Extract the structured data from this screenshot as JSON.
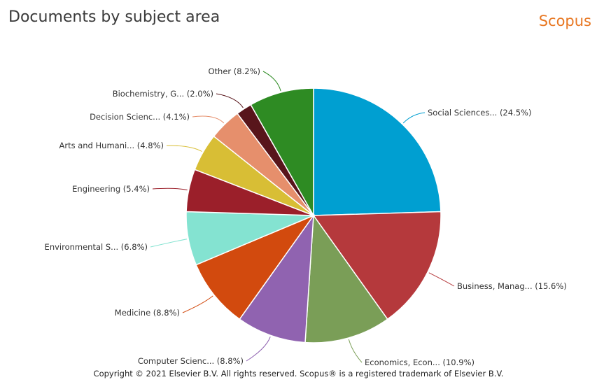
{
  "header": {
    "title": "Documents by subject area",
    "brand": "Scopus"
  },
  "footer": {
    "copyright": "Copyright © 2021 Elsevier B.V. All rights reserved. Scopus® is a registered trademark of Elsevier B.V."
  },
  "chart_data": {
    "type": "pie",
    "title": "Documents by subject area",
    "unit": "%",
    "slices": [
      {
        "label": "Social Sciences...",
        "value": 24.5,
        "color": "#009fd1"
      },
      {
        "label": "Business, Manag...",
        "value": 15.6,
        "color": "#b5393c"
      },
      {
        "label": "Economics, Econ...",
        "value": 10.9,
        "color": "#7a9e57"
      },
      {
        "label": "Computer Scienc...",
        "value": 8.8,
        "color": "#9063b0"
      },
      {
        "label": "Medicine",
        "value": 8.8,
        "color": "#d24a0e"
      },
      {
        "label": "Environmental S...",
        "value": 6.8,
        "color": "#84e3d1"
      },
      {
        "label": "Engineering",
        "value": 5.4,
        "color": "#9b1f2a"
      },
      {
        "label": "Arts and Humani...",
        "value": 4.8,
        "color": "#d8be35"
      },
      {
        "label": "Decision Scienc...",
        "value": 4.1,
        "color": "#e68f6c"
      },
      {
        "label": "Biochemistry, G...",
        "value": 2.0,
        "color": "#58151b"
      },
      {
        "label": "Other",
        "value": 8.2,
        "color": "#2e8b23"
      }
    ]
  }
}
